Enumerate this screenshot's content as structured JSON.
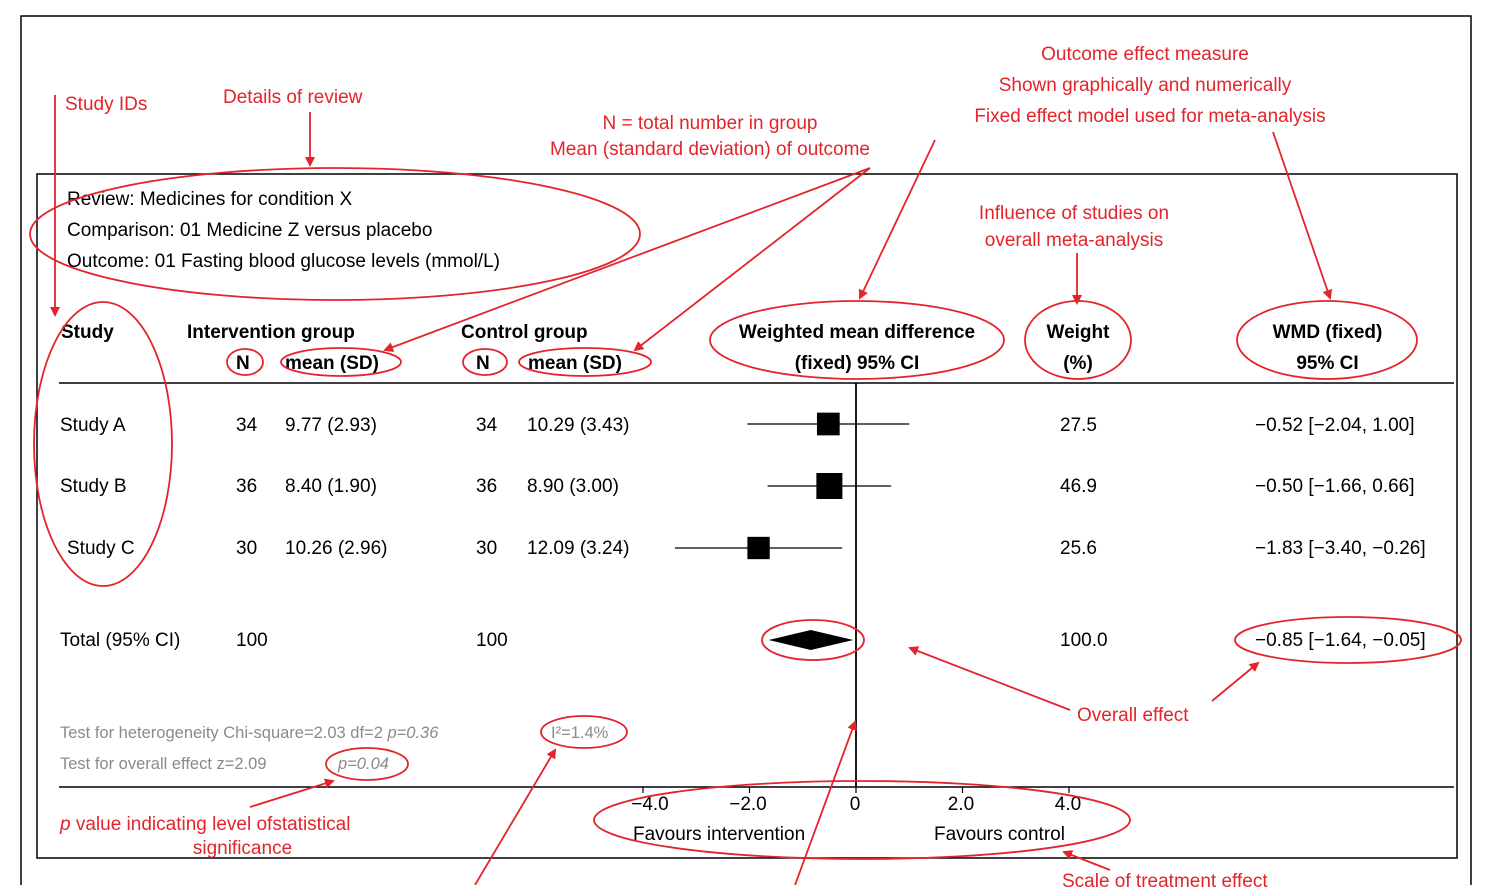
{
  "header": {
    "review": "Review: Medicines for condition X",
    "comparison": "Comparison: 01 Medicine Z versus placebo",
    "outcome": "Outcome: 01 Fasting blood glucose levels (mmol/L)"
  },
  "columns": {
    "study": "Study",
    "intervention_group": "Intervention group",
    "control_group": "Control group",
    "n": "N",
    "mean_sd": "mean (SD)",
    "wmd_line1": "Weighted mean difference",
    "wmd_line2": "(fixed) 95% CI",
    "weight_line1": "Weight",
    "weight_line2": "(%)",
    "wmdfixed_line1": "WMD (fixed)",
    "wmdfixed_line2": "95% CI"
  },
  "studies": [
    {
      "name": "Study A",
      "int_n": "34",
      "int_mean_sd": "9.77 (2.93)",
      "ctl_n": "34",
      "ctl_mean_sd": "10.29 (3.43)",
      "weight": "27.5",
      "wmd_ci": "−0.52 [−2.04, 1.00]"
    },
    {
      "name": "Study B",
      "int_n": "36",
      "int_mean_sd": "8.40 (1.90)",
      "ctl_n": "36",
      "ctl_mean_sd": "8.90 (3.00)",
      "weight": "46.9",
      "wmd_ci": "−0.50 [−1.66, 0.66]"
    },
    {
      "name": "Study C",
      "int_n": "30",
      "int_mean_sd": "10.26 (2.96)",
      "ctl_n": "30",
      "ctl_mean_sd": "12.09 (3.24)",
      "weight": "25.6",
      "wmd_ci": "−1.83 [−3.40, −0.26]"
    }
  ],
  "total": {
    "name": "Total (95% CI)",
    "int_n": "100",
    "ctl_n": "100",
    "weight": "100.0",
    "wmd_ci": "−0.85 [−1.64, −0.05]"
  },
  "tests": {
    "heterogeneity": "Test for heterogeneity Chi-square=2.03 df=2 ",
    "heterogeneity_p": "p=0.36",
    "i2": "I²=1.4%",
    "overall": "Test for overall effect z=2.09",
    "overall_p": "p=0.04"
  },
  "axis": {
    "ticks": [
      "−4.0",
      "−2.0",
      "0",
      "2.0",
      "4.0"
    ],
    "favours_left": "Favours intervention",
    "favours_right": "Favours control"
  },
  "annotations": {
    "study_ids": "Study IDs",
    "details_of_review": "Details of review",
    "n_total": "N = total number in group",
    "mean_sd_outcome": "Mean (standard deviation) of outcome",
    "effect_measure": "Outcome effect measure",
    "shown_graphically": "Shown graphically and numerically",
    "fixed_effect_model": "Fixed effect model used for meta-analysis",
    "influence_line1": "Influence of studies on",
    "influence_line2": "overall meta-analysis",
    "overall_effect": "Overall effect",
    "p_value_italic": "p",
    "p_value_rest": " value indicating level ofstatistical",
    "significance": "significance",
    "scale": "Scale of treatment effect"
  },
  "colors": {
    "annotation": "#e3242b",
    "ink": "#000000",
    "muted": "#8a8a8a"
  },
  "chart_data": {
    "type": "forest",
    "categories": [
      "Study A",
      "Study B",
      "Study C",
      "Total (95% CI)"
    ],
    "estimates": [
      -0.52,
      -0.5,
      -1.83,
      -0.85
    ],
    "ci_lower": [
      -2.04,
      -1.66,
      -3.4,
      -1.64
    ],
    "ci_upper": [
      1.0,
      0.66,
      -0.26,
      -0.05
    ],
    "weights": [
      27.5,
      46.9,
      25.6,
      100.0
    ],
    "xlim": [
      -4,
      4
    ],
    "xticks": [
      -4,
      -2,
      0,
      2,
      4
    ]
  }
}
